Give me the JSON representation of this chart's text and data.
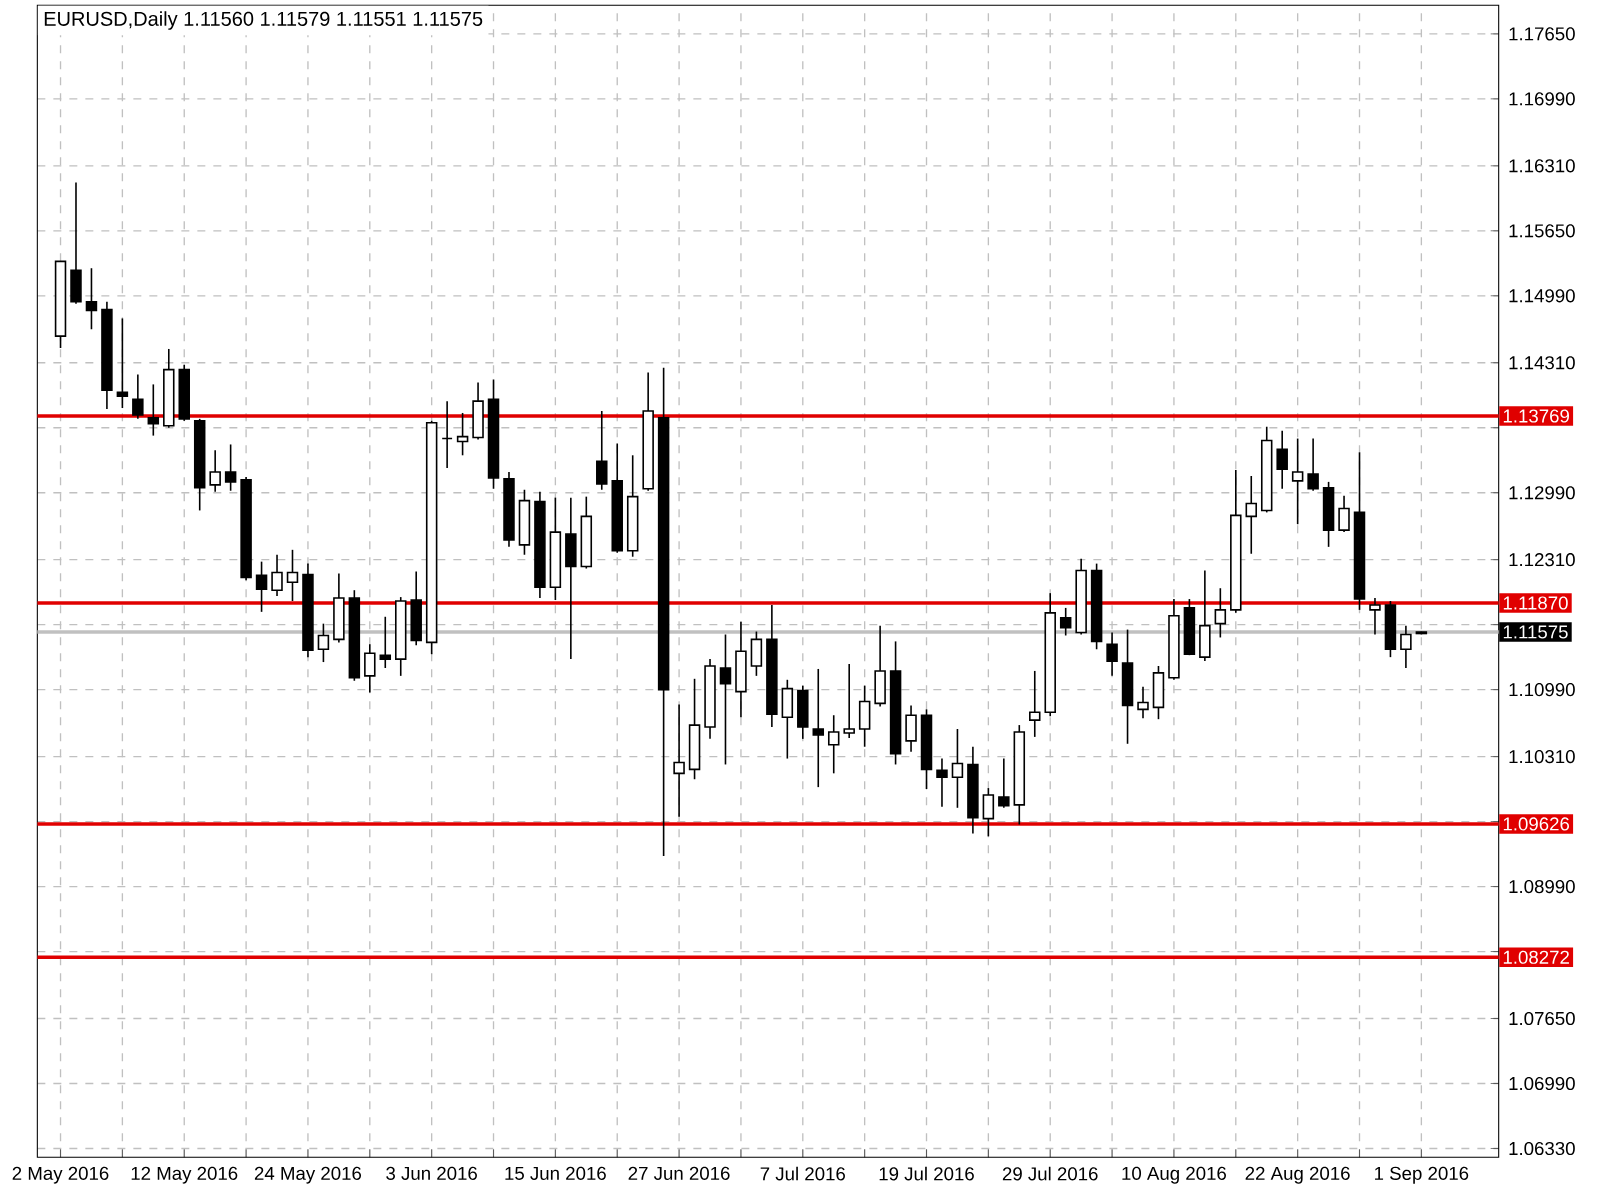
{
  "chart_data": {
    "type": "candlestick",
    "title": "EURUSD,Daily  1.11560 1.11579 1.11551 1.11575",
    "categories": [
      "2 May 2016",
      null,
      null,
      null,
      null,
      null,
      null,
      null,
      "12 May 2016",
      null,
      null,
      null,
      null,
      null,
      null,
      null,
      "24 May 2016",
      null,
      null,
      null,
      null,
      null,
      null,
      null,
      "3 Jun 2016",
      null,
      null,
      null,
      null,
      null,
      null,
      null,
      "15 Jun 2016",
      null,
      null,
      null,
      null,
      null,
      null,
      null,
      "27 Jun 2016",
      null,
      null,
      null,
      null,
      null,
      null,
      null,
      "7 Jul 2016",
      null,
      null,
      null,
      null,
      null,
      null,
      null,
      "19 Jul 2016",
      null,
      null,
      null,
      null,
      null,
      null,
      null,
      "29 Jul 2016",
      null,
      null,
      null,
      null,
      null,
      null,
      null,
      "10 Aug 2016",
      null,
      null,
      null,
      null,
      null,
      null,
      null,
      "22 Aug 2016",
      null,
      null,
      null,
      null,
      null,
      null,
      null,
      "1 Sep 2016"
    ],
    "ohlc": [
      [
        1.1458,
        1.1534,
        1.1446,
        1.1534
      ],
      [
        1.1525,
        1.1614,
        1.1491,
        1.1493
      ],
      [
        1.1493,
        1.1527,
        1.1465,
        1.1484
      ],
      [
        1.1485,
        1.1493,
        1.1384,
        1.1403
      ],
      [
        1.1401,
        1.1476,
        1.1385,
        1.1397
      ],
      [
        1.1394,
        1.1419,
        1.1374,
        1.1378
      ],
      [
        1.1375,
        1.1409,
        1.1357,
        1.1369
      ],
      [
        1.1367,
        1.1445,
        1.1365,
        1.1424
      ],
      [
        1.1424,
        1.1429,
        1.1372,
        1.1374
      ],
      [
        1.1372,
        1.1374,
        1.1281,
        1.1304
      ],
      [
        1.1307,
        1.1342,
        1.13,
        1.132
      ],
      [
        1.132,
        1.1348,
        1.1301,
        1.131
      ],
      [
        1.1312,
        1.1315,
        1.121,
        1.1213
      ],
      [
        1.1215,
        1.1229,
        1.1178,
        1.1201
      ],
      [
        1.12,
        1.1236,
        1.1194,
        1.1218
      ],
      [
        1.1208,
        1.1241,
        1.1189,
        1.1218
      ],
      [
        1.1216,
        1.1227,
        1.1132,
        1.1139
      ],
      [
        1.114,
        1.1166,
        1.1127,
        1.1154
      ],
      [
        1.115,
        1.1217,
        1.1147,
        1.1192
      ],
      [
        1.1192,
        1.12,
        1.1108,
        1.1111
      ],
      [
        1.1113,
        1.1145,
        1.1096,
        1.1136
      ],
      [
        1.1134,
        1.1173,
        1.1121,
        1.113
      ],
      [
        1.113,
        1.1193,
        1.1113,
        1.1189
      ],
      [
        1.119,
        1.1219,
        1.1144,
        1.1149
      ],
      [
        1.1147,
        1.1372,
        1.1135,
        1.137
      ],
      [
        1.1354,
        1.1392,
        1.1324,
        1.1354
      ],
      [
        1.1351,
        1.138,
        1.1337,
        1.1356
      ],
      [
        1.1355,
        1.1411,
        1.1353,
        1.1392
      ],
      [
        1.1394,
        1.1414,
        1.1303,
        1.1314
      ],
      [
        1.1313,
        1.132,
        1.1244,
        1.1251
      ],
      [
        1.1246,
        1.1302,
        1.1236,
        1.1291
      ],
      [
        1.129,
        1.13,
        1.1192,
        1.1203
      ],
      [
        1.1203,
        1.1294,
        1.119,
        1.1259
      ],
      [
        1.1257,
        1.1294,
        1.113,
        1.1224
      ],
      [
        1.1224,
        1.1295,
        1.1222,
        1.1275
      ],
      [
        1.1331,
        1.1382,
        1.1302,
        1.1308
      ],
      [
        1.1311,
        1.1349,
        1.1238,
        1.124
      ],
      [
        1.124,
        1.1337,
        1.1234,
        1.1295
      ],
      [
        1.1303,
        1.1421,
        1.1301,
        1.1382
      ],
      [
        1.1375,
        1.1426,
        1.093,
        1.1099
      ],
      [
        1.1014,
        1.1084,
        1.097,
        1.1025
      ],
      [
        1.1018,
        1.111,
        1.1008,
        1.1063
      ],
      [
        1.1061,
        1.113,
        1.1049,
        1.1123
      ],
      [
        1.1121,
        1.1155,
        1.1023,
        1.1105
      ],
      [
        1.1097,
        1.1168,
        1.1071,
        1.1138
      ],
      [
        1.1123,
        1.1158,
        1.1113,
        1.115
      ],
      [
        1.115,
        1.1185,
        1.1061,
        1.1074
      ],
      [
        1.1071,
        1.1109,
        1.1029,
        1.11
      ],
      [
        1.1098,
        1.1103,
        1.1049,
        1.1061
      ],
      [
        1.1059,
        1.112,
        1.1,
        1.1053
      ],
      [
        1.1043,
        1.1073,
        1.1014,
        1.1056
      ],
      [
        1.1055,
        1.1125,
        1.105,
        1.1059
      ],
      [
        1.1059,
        1.1103,
        1.1041,
        1.1087
      ],
      [
        1.1085,
        1.1164,
        1.1082,
        1.1118
      ],
      [
        1.1118,
        1.1148,
        1.1023,
        1.1034
      ],
      [
        1.1047,
        1.1083,
        1.1036,
        1.1073
      ],
      [
        1.1073,
        1.1079,
        1.0998,
        1.1018
      ],
      [
        1.1017,
        1.1029,
        1.098,
        1.101
      ],
      [
        1.101,
        1.1059,
        1.0979,
        1.1024
      ],
      [
        1.1023,
        1.1041,
        1.0953,
        1.0969
      ],
      [
        1.0968,
        1.0999,
        1.095,
        1.0992
      ],
      [
        1.099,
        1.1029,
        1.0979,
        1.0981
      ],
      [
        1.0982,
        1.1063,
        1.0962,
        1.1056
      ],
      [
        1.1068,
        1.1118,
        1.1051,
        1.1076
      ],
      [
        1.1076,
        1.1197,
        1.1072,
        1.1177
      ],
      [
        1.1172,
        1.1182,
        1.1154,
        1.1162
      ],
      [
        1.1157,
        1.1232,
        1.1155,
        1.122
      ],
      [
        1.122,
        1.1227,
        1.114,
        1.1148
      ],
      [
        1.1145,
        1.1157,
        1.1113,
        1.1128
      ],
      [
        1.1126,
        1.116,
        1.1044,
        1.1083
      ],
      [
        1.1079,
        1.1102,
        1.107,
        1.1086
      ],
      [
        1.1081,
        1.1123,
        1.1069,
        1.1116
      ],
      [
        1.1111,
        1.1191,
        1.1109,
        1.1174
      ],
      [
        1.1182,
        1.1191,
        1.1134,
        1.1135
      ],
      [
        1.1132,
        1.122,
        1.1128,
        1.1164
      ],
      [
        1.1166,
        1.1202,
        1.1152,
        1.118
      ],
      [
        1.118,
        1.1322,
        1.1177,
        1.1276
      ],
      [
        1.1275,
        1.1316,
        1.1237,
        1.1288
      ],
      [
        1.1281,
        1.1366,
        1.1279,
        1.1352
      ],
      [
        1.1343,
        1.1362,
        1.1303,
        1.1323
      ],
      [
        1.1311,
        1.1354,
        1.1267,
        1.132
      ],
      [
        1.1318,
        1.1354,
        1.1301,
        1.1303
      ],
      [
        1.1304,
        1.131,
        1.1244,
        1.1261
      ],
      [
        1.1261,
        1.1296,
        1.1259,
        1.1283
      ],
      [
        1.1279,
        1.134,
        1.118,
        1.1191
      ],
      [
        1.118,
        1.1192,
        1.1155,
        1.1185
      ],
      [
        1.1185,
        1.1189,
        1.1132,
        1.114
      ],
      [
        1.114,
        1.1164,
        1.1121,
        1.1155
      ],
      [
        1.1156,
        1.11579,
        1.11551,
        1.11575
      ]
    ],
    "ylim": [
      1.0624,
      1.1794
    ],
    "yticks": [
      {
        "value": 1.1765,
        "label": "1.17650"
      },
      {
        "value": 1.1699,
        "label": "1.16990"
      },
      {
        "value": 1.1631,
        "label": "1.16310"
      },
      {
        "value": 1.1565,
        "label": "1.15650"
      },
      {
        "value": 1.1499,
        "label": "1.14990"
      },
      {
        "value": 1.1431,
        "label": "1.14310"
      },
      {
        "value": 1.1365,
        "label": null
      },
      {
        "value": 1.1299,
        "label": "1.12990"
      },
      {
        "value": 1.1231,
        "label": "1.12310"
      },
      {
        "value": 1.1165,
        "label": null
      },
      {
        "value": 1.1099,
        "label": "1.10990"
      },
      {
        "value": 1.1031,
        "label": "1.10310"
      },
      {
        "value": 1.0965,
        "label": null
      },
      {
        "value": 1.0899,
        "label": "1.08990"
      },
      {
        "value": 1.0833,
        "label": null
      },
      {
        "value": 1.0765,
        "label": "1.07650"
      },
      {
        "value": 1.0699,
        "label": "1.06990"
      },
      {
        "value": 1.0633,
        "label": "1.06330"
      }
    ],
    "ref_lines": [
      {
        "axis": "y",
        "value": 1.13769,
        "label": "1.13769",
        "color": "#e00000"
      },
      {
        "axis": "y",
        "value": 1.1187,
        "label": "1.11870",
        "color": "#e00000"
      },
      {
        "axis": "y",
        "value": 1.09626,
        "label": "1.09626",
        "color": "#e00000"
      },
      {
        "axis": "y",
        "value": 1.08272,
        "label": "1.08272",
        "color": "#e00000"
      },
      {
        "axis": "y",
        "value": 1.11575,
        "label": "1.11575",
        "color": "#c0c0c0"
      }
    ],
    "grid": true
  }
}
